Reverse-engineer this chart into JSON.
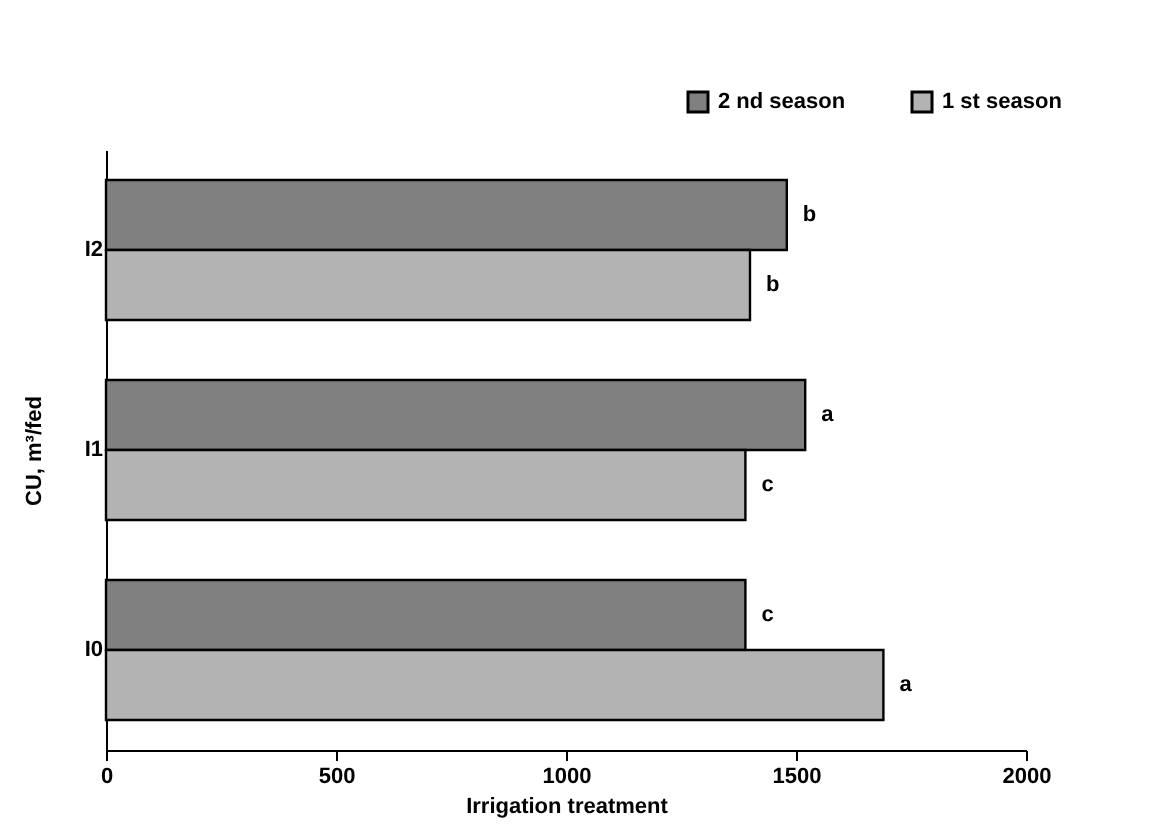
{
  "chart_data": {
    "type": "bar",
    "orientation": "horizontal",
    "xlabel": "Irrigation treatment",
    "ylabel": "CU, m³/fed",
    "categories": [
      "I2",
      "I1",
      "I0"
    ],
    "series": [
      {
        "name": "2 nd season",
        "color": "#808080",
        "values": [
          1480,
          1520,
          1390
        ],
        "value_labels": [
          "b",
          "a",
          "c"
        ]
      },
      {
        "name": "1 st season",
        "color": "#b3b3b3",
        "values": [
          1400,
          1390,
          1690
        ],
        "value_labels": [
          "b",
          "c",
          "a"
        ]
      }
    ],
    "xlim": [
      0,
      2000
    ],
    "xticks": [
      0,
      500,
      1000,
      1500,
      2000
    ],
    "grid": false,
    "legend": "top right"
  }
}
